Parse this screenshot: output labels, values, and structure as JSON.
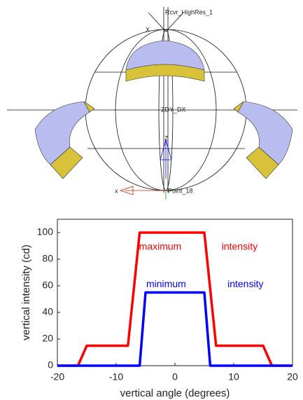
{
  "diagram": {
    "labels": [
      "Rcvr_HighRes_1",
      "X",
      "ZDY_DX",
      "Z",
      "x",
      "Point_18"
    ]
  },
  "chart_data": {
    "type": "line",
    "xlabel": "vertical angle (degrees)",
    "ylabel": "vertical intensity (cd)",
    "xlim": [
      -20,
      20
    ],
    "xticks": [
      -20,
      -10,
      0,
      10,
      20
    ],
    "ylim": [
      0,
      110
    ],
    "yticks": [
      0,
      20,
      40,
      60,
      80,
      100
    ],
    "series": [
      {
        "color": "#ff0000",
        "x": [
          -20,
          -16.5,
          -15,
          -8,
          -6,
          5,
          7,
          15,
          16.5,
          20
        ],
        "values": [
          0,
          0,
          15,
          15,
          100,
          100,
          15,
          15,
          0,
          0
        ]
      },
      {
        "color": "#0000ff",
        "x": [
          -20,
          -6,
          -5,
          5,
          6,
          20
        ],
        "values": [
          0,
          0,
          55,
          55,
          0,
          0
        ]
      }
    ],
    "annotations": [
      {
        "text": "maximum",
        "x": -2.5,
        "y": 89,
        "color": "#ff0000"
      },
      {
        "text": "intensity",
        "x": 11,
        "y": 89,
        "color": "#ff0000"
      },
      {
        "text": "minimum",
        "x": -1.5,
        "y": 61,
        "color": "#0000ff"
      },
      {
        "text": "intensity",
        "x": 12,
        "y": 61,
        "color": "#0000ff"
      }
    ]
  }
}
